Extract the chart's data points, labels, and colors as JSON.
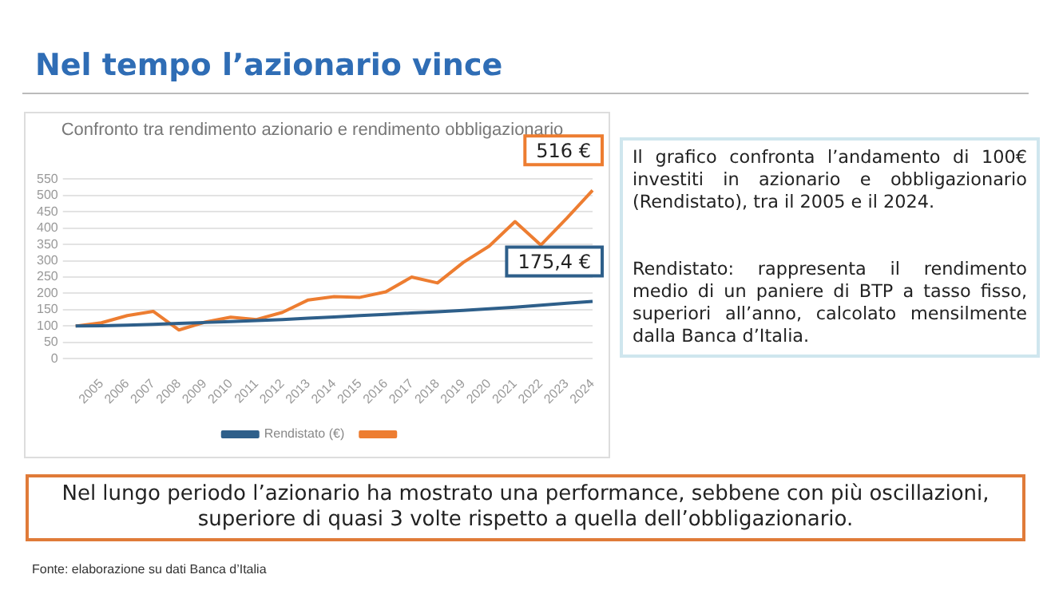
{
  "chart_data": {
    "type": "line",
    "title": "Nel tempo l’azionario vince",
    "subtitle": "Confronto tra rendimento azionario e rendimento obbligazionario",
    "categories": [
      null,
      "2005",
      "2006",
      "2007",
      "2008",
      "2009",
      "2010",
      "2011",
      "2012",
      "2013",
      "2014",
      "2015",
      "2016",
      "2017",
      "2018",
      "2019",
      "2020",
      "2021",
      "2022",
      "2023",
      "2024"
    ],
    "series": [
      {
        "name": "Rendistato (€)",
        "color": "#2e5f8a",
        "values": [
          100,
          101,
          103,
          105,
          108,
          111,
          114,
          117,
          120,
          124,
          128,
          132,
          136,
          140,
          144,
          148,
          153,
          158,
          164,
          170,
          175.4
        ]
      },
      {
        "color": "#ed7d31",
        "values": [
          100,
          110,
          132,
          145,
          88,
          112,
          127,
          120,
          142,
          180,
          190,
          188,
          205,
          250,
          232,
          295,
          345,
          420,
          348,
          430,
          516
        ]
      }
    ],
    "ylim": [
      0,
      550
    ],
    "yticks": [
      0,
      50,
      100,
      150,
      200,
      250,
      300,
      350,
      400,
      450,
      500,
      550
    ],
    "grid": "y",
    "legend": "bottom",
    "marker": "none",
    "line_style": "solid",
    "annotations": [
      {
        "text": "516 €",
        "x": "2024",
        "y": 516
      },
      {
        "text": "175,4 €",
        "x": "2024",
        "y": 175.4
      },
      "Il grafico confronta l’andamento di 100€ investiti in azionario e obbligazionario (Rendistato), tra il 2005 e il 2024.",
      "Rendistato: rappresenta il rendimento medio di un paniere di BTP a tasso fisso, superiori all’anno, calcolato mensilmente dalla Banca d’Italia.",
      "Nel lungo periodo l’azionario ha mostrato una performance, sebbene con più oscillazioni, superiore di quasi 3 volte rispetto a quella dell’obbligazionario.",
      "Fonte: elaborazione su dati Banca d’Italia"
    ]
  }
}
